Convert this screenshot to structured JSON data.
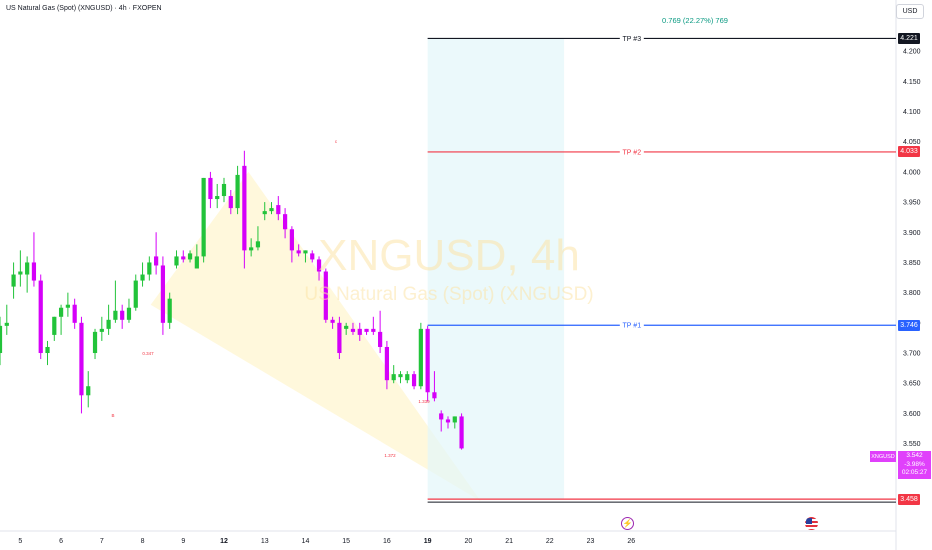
{
  "header": {
    "title": "US Natural Gas (Spot) (XNGUSD) · 4h · FXOPEN",
    "currency_button": "USD"
  },
  "watermark": {
    "line1": "XNGUSD, 4h",
    "line2": "US Natural Gas (Spot) (XNGUSD)"
  },
  "projection": {
    "label": "0.769 (22.27%) 769"
  },
  "levels": [
    {
      "label": "TP #3",
      "price": 4.221,
      "price_text": "4.221",
      "color": "#131722"
    },
    {
      "label": "TP #2",
      "price": 4.033,
      "price_text": "4.033",
      "color": "#f23645"
    },
    {
      "label": "TP #1",
      "price": 3.746,
      "price_text": "3.746",
      "color": "#2962ff"
    },
    {
      "label": "",
      "price": 3.458,
      "price_text": "3.458",
      "color": "#f23645"
    }
  ],
  "current": {
    "symbol": "XNGUSD",
    "price": "3.542",
    "change": "-3.98%",
    "countdown": "02:05:27"
  },
  "pattern": {
    "point_labels": [
      "0.347",
      "1.339",
      "1.372"
    ],
    "pivot_labels": [
      "c",
      "B"
    ]
  },
  "indicators": {
    "lightning_icon": "lightning-icon",
    "flag_icon": "us-flag-icon"
  },
  "chart_data": {
    "type": "candlestick",
    "y_axis": {
      "range": [
        3.44,
        4.235
      ],
      "ticks": [
        "3.500",
        "3.550",
        "3.600",
        "3.650",
        "3.700",
        "3.750",
        "3.800",
        "3.850",
        "3.900",
        "3.950",
        "4.000",
        "4.050",
        "4.100",
        "4.150",
        "4.200"
      ],
      "position": "right"
    },
    "x_axis": {
      "range": [
        4.5,
        26.5
      ],
      "ticks": [
        {
          "label": "5",
          "v": 5
        },
        {
          "label": "6",
          "v": 6
        },
        {
          "label": "7",
          "v": 7
        },
        {
          "label": "8",
          "v": 8
        },
        {
          "label": "9",
          "v": 9
        },
        {
          "label": "12",
          "v": 10
        },
        {
          "label": "13",
          "v": 11
        },
        {
          "label": "14",
          "v": 12
        },
        {
          "label": "15",
          "v": 13
        },
        {
          "label": "16",
          "v": 14
        },
        {
          "label": "19",
          "v": 15
        },
        {
          "label": "20",
          "v": 16
        },
        {
          "label": "21",
          "v": 17
        },
        {
          "label": "22",
          "v": 18
        },
        {
          "label": "23",
          "v": 19
        },
        {
          "label": "26",
          "v": 20
        }
      ],
      "highlighted_ticks": [
        "12",
        "19"
      ]
    },
    "bars_per_day": 6,
    "first_bar_x": 4.5,
    "candles": [
      {
        "o": 3.7,
        "h": 3.76,
        "l": 3.68,
        "c": 3.745
      },
      {
        "o": 3.745,
        "h": 3.78,
        "l": 3.73,
        "c": 3.75
      },
      {
        "o": 3.81,
        "h": 3.85,
        "l": 3.79,
        "c": 3.83
      },
      {
        "o": 3.83,
        "h": 3.87,
        "l": 3.81,
        "c": 3.835
      },
      {
        "o": 3.83,
        "h": 3.86,
        "l": 3.8,
        "c": 3.85
      },
      {
        "o": 3.85,
        "h": 3.9,
        "l": 3.81,
        "c": 3.82
      },
      {
        "o": 3.82,
        "h": 3.83,
        "l": 3.69,
        "c": 3.7
      },
      {
        "o": 3.7,
        "h": 3.72,
        "l": 3.68,
        "c": 3.71
      },
      {
        "o": 3.73,
        "h": 3.76,
        "l": 3.72,
        "c": 3.76
      },
      {
        "o": 3.76,
        "h": 3.78,
        "l": 3.73,
        "c": 3.775
      },
      {
        "o": 3.775,
        "h": 3.8,
        "l": 3.76,
        "c": 3.78
      },
      {
        "o": 3.78,
        "h": 3.79,
        "l": 3.74,
        "c": 3.75
      },
      {
        "o": 3.75,
        "h": 3.76,
        "l": 3.6,
        "c": 3.63
      },
      {
        "o": 3.63,
        "h": 3.67,
        "l": 3.61,
        "c": 3.645
      },
      {
        "o": 3.7,
        "h": 3.74,
        "l": 3.69,
        "c": 3.735
      },
      {
        "o": 3.735,
        "h": 3.76,
        "l": 3.72,
        "c": 3.74
      },
      {
        "o": 3.74,
        "h": 3.78,
        "l": 3.73,
        "c": 3.755
      },
      {
        "o": 3.755,
        "h": 3.82,
        "l": 3.75,
        "c": 3.77
      },
      {
        "o": 3.77,
        "h": 3.78,
        "l": 3.74,
        "c": 3.755
      },
      {
        "o": 3.755,
        "h": 3.79,
        "l": 3.75,
        "c": 3.775
      },
      {
        "o": 3.775,
        "h": 3.83,
        "l": 3.77,
        "c": 3.82
      },
      {
        "o": 3.82,
        "h": 3.85,
        "l": 3.81,
        "c": 3.83
      },
      {
        "o": 3.83,
        "h": 3.86,
        "l": 3.82,
        "c": 3.85
      },
      {
        "o": 3.86,
        "h": 3.9,
        "l": 3.83,
        "c": 3.845
      },
      {
        "o": 3.845,
        "h": 3.86,
        "l": 3.73,
        "c": 3.75
      },
      {
        "o": 3.75,
        "h": 3.8,
        "l": 3.74,
        "c": 3.79
      },
      {
        "o": 3.845,
        "h": 3.87,
        "l": 3.84,
        "c": 3.86
      },
      {
        "o": 3.86,
        "h": 3.87,
        "l": 3.85,
        "c": 3.855
      },
      {
        "o": 3.855,
        "h": 3.87,
        "l": 3.85,
        "c": 3.865
      },
      {
        "o": 3.84,
        "h": 3.88,
        "l": 3.84,
        "c": 3.86
      },
      {
        "o": 3.86,
        "h": 3.99,
        "l": 3.85,
        "c": 3.99
      },
      {
        "o": 3.99,
        "h": 4.0,
        "l": 3.94,
        "c": 3.955
      },
      {
        "o": 3.955,
        "h": 3.98,
        "l": 3.94,
        "c": 3.96
      },
      {
        "o": 3.96,
        "h": 3.99,
        "l": 3.95,
        "c": 3.98
      },
      {
        "o": 3.96,
        "h": 3.97,
        "l": 3.93,
        "c": 3.94
      },
      {
        "o": 3.94,
        "h": 4.01,
        "l": 3.93,
        "c": 3.995
      },
      {
        "o": 4.01,
        "h": 4.035,
        "l": 3.84,
        "c": 3.87
      },
      {
        "o": 3.87,
        "h": 3.89,
        "l": 3.86,
        "c": 3.875
      },
      {
        "o": 3.875,
        "h": 3.91,
        "l": 3.87,
        "c": 3.885
      },
      {
        "o": 3.93,
        "h": 3.95,
        "l": 3.92,
        "c": 3.935
      },
      {
        "o": 3.935,
        "h": 3.95,
        "l": 3.93,
        "c": 3.94
      },
      {
        "o": 3.945,
        "h": 3.96,
        "l": 3.92,
        "c": 3.93
      },
      {
        "o": 3.93,
        "h": 3.94,
        "l": 3.89,
        "c": 3.905
      },
      {
        "o": 3.905,
        "h": 3.91,
        "l": 3.85,
        "c": 3.87
      },
      {
        "o": 3.87,
        "h": 3.88,
        "l": 3.86,
        "c": 3.865
      },
      {
        "o": 3.865,
        "h": 3.87,
        "l": 3.85,
        "c": 3.87
      },
      {
        "o": 3.865,
        "h": 3.87,
        "l": 3.85,
        "c": 3.855
      },
      {
        "o": 3.855,
        "h": 3.86,
        "l": 3.82,
        "c": 3.835
      },
      {
        "o": 3.835,
        "h": 3.84,
        "l": 3.75,
        "c": 3.755
      },
      {
        "o": 3.755,
        "h": 3.76,
        "l": 3.74,
        "c": 3.75
      },
      {
        "o": 3.75,
        "h": 3.76,
        "l": 3.69,
        "c": 3.7
      },
      {
        "o": 3.74,
        "h": 3.75,
        "l": 3.73,
        "c": 3.745
      },
      {
        "o": 3.74,
        "h": 3.75,
        "l": 3.73,
        "c": 3.735
      },
      {
        "o": 3.74,
        "h": 3.75,
        "l": 3.72,
        "c": 3.73
      },
      {
        "o": 3.74,
        "h": 3.74,
        "l": 3.73,
        "c": 3.735
      },
      {
        "o": 3.74,
        "h": 3.76,
        "l": 3.73,
        "c": 3.735
      },
      {
        "o": 3.735,
        "h": 3.77,
        "l": 3.7,
        "c": 3.71
      },
      {
        "o": 3.71,
        "h": 3.72,
        "l": 3.64,
        "c": 3.655
      },
      {
        "o": 3.655,
        "h": 3.68,
        "l": 3.65,
        "c": 3.665
      },
      {
        "o": 3.66,
        "h": 3.67,
        "l": 3.65,
        "c": 3.665
      },
      {
        "o": 3.655,
        "h": 3.67,
        "l": 3.65,
        "c": 3.665
      },
      {
        "o": 3.665,
        "h": 3.67,
        "l": 3.64,
        "c": 3.645
      },
      {
        "o": 3.645,
        "h": 3.75,
        "l": 3.64,
        "c": 3.74
      },
      {
        "o": 3.74,
        "h": 3.745,
        "l": 3.62,
        "c": 3.635
      },
      {
        "o": 3.635,
        "h": 3.67,
        "l": 3.62,
        "c": 3.625
      },
      {
        "o": 3.6,
        "h": 3.605,
        "l": 3.57,
        "c": 3.59
      },
      {
        "o": 3.59,
        "h": 3.595,
        "l": 3.575,
        "c": 3.585
      },
      {
        "o": 3.585,
        "h": 3.595,
        "l": 3.575,
        "c": 3.595
      },
      {
        "o": 3.595,
        "h": 3.6,
        "l": 3.54,
        "c": 3.542
      }
    ]
  }
}
